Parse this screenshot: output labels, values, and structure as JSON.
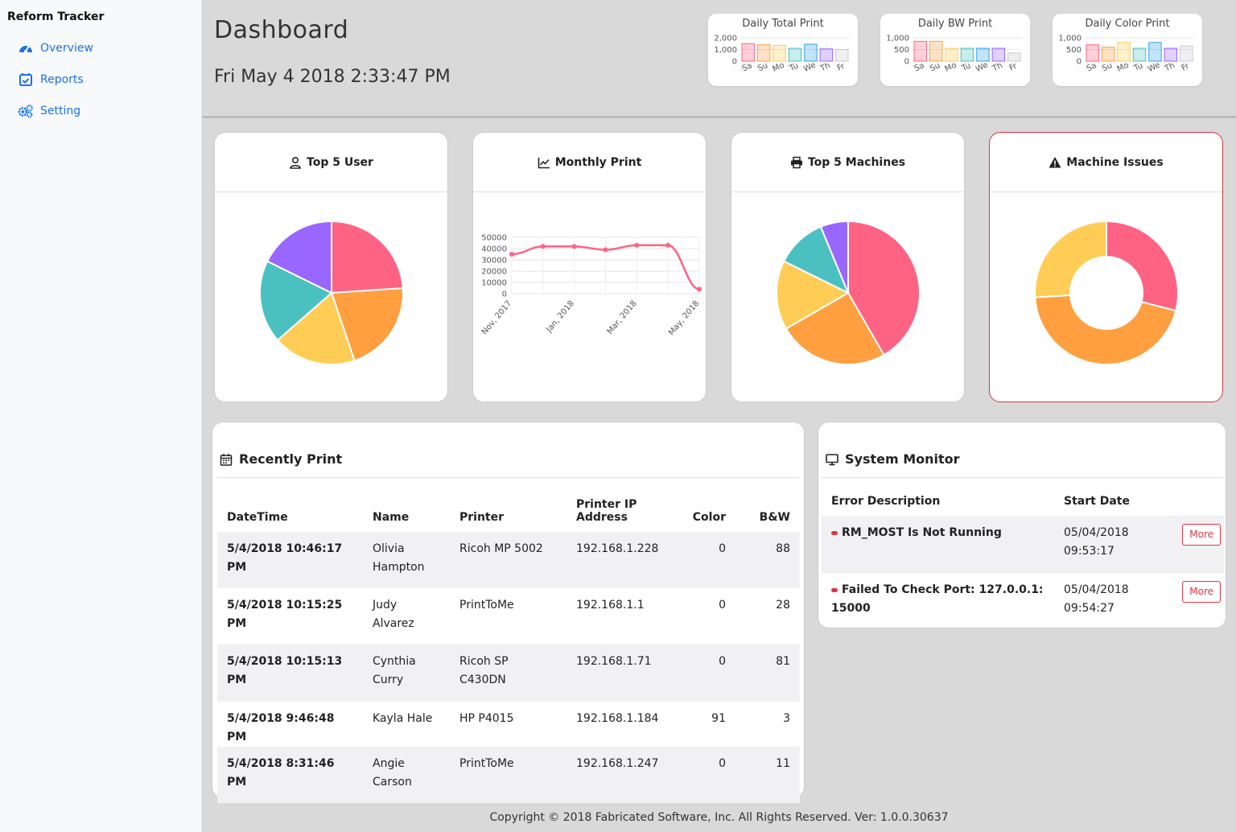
{
  "sidebar": {
    "brand": "Reform Tracker",
    "items": [
      {
        "label": "Overview",
        "icon": "dashboard-icon"
      },
      {
        "label": "Reports",
        "icon": "calendar-check-icon"
      },
      {
        "label": "Setting",
        "icon": "gears-icon"
      }
    ]
  },
  "header": {
    "title": "Dashboard",
    "datetime": "Fri May 4 2018 2:33:47 PM"
  },
  "mini_charts": [
    {
      "title": "Daily Total Print",
      "yticks": [
        "2,000",
        "1,000",
        "0"
      ],
      "ymax": 2000,
      "days": [
        "Sa",
        "Su",
        "Mo",
        "Tu",
        "We",
        "Th",
        "Fr"
      ],
      "values": [
        1500,
        1400,
        1350,
        1100,
        1450,
        1050,
        1000
      ]
    },
    {
      "title": "Daily BW Print",
      "yticks": [
        "1,000",
        "500",
        "0"
      ],
      "ymax": 1000,
      "days": [
        "Sa",
        "Su",
        "Mo",
        "Tu",
        "We",
        "Th",
        "Fr"
      ],
      "values": [
        850,
        850,
        550,
        550,
        550,
        550,
        350
      ]
    },
    {
      "title": "Daily Color Print",
      "yticks": [
        "1,000",
        "500",
        "0"
      ],
      "ymax": 1000,
      "days": [
        "Sa",
        "Su",
        "Mo",
        "Tu",
        "We",
        "Th",
        "Fr"
      ],
      "values": [
        700,
        600,
        800,
        550,
        800,
        550,
        650
      ]
    }
  ],
  "cards": [
    {
      "title": "Top 5 User",
      "icon": "user-icon"
    },
    {
      "title": "Monthly Print",
      "icon": "line-chart-icon"
    },
    {
      "title": "Top 5 Machines",
      "icon": "printer-icon"
    },
    {
      "title": "Machine Issues",
      "icon": "warning-icon"
    }
  ],
  "chart_data": [
    {
      "type": "pie",
      "title": "Top 5 User",
      "values": [
        23,
        20,
        18,
        18,
        17
      ],
      "colors": [
        "#ff6384",
        "#ff9f40",
        "#ffcd56",
        "#4bc0c0",
        "#9966ff"
      ]
    },
    {
      "type": "line",
      "title": "Monthly Print",
      "x": [
        "Nov, 2017",
        "Dec, 2017",
        "Jan, 2018",
        "Feb, 2018",
        "Mar, 2018",
        "Apr, 2018",
        "May, 2018"
      ],
      "xtick_labels": [
        "Nov, 2017",
        "Jan, 2018",
        "Mar, 2018",
        "May, 2018"
      ],
      "y": [
        35000,
        42000,
        42000,
        39000,
        43000,
        43000,
        4000
      ],
      "ylim": [
        0,
        50000
      ],
      "yticks": [
        "50000",
        "40000",
        "30000",
        "20000",
        "10000",
        "0"
      ],
      "color": "#ff6384",
      "grid": true
    },
    {
      "type": "pie",
      "title": "Top 5 Machines",
      "values": [
        40,
        24,
        15,
        11,
        6
      ],
      "colors": [
        "#ff6384",
        "#ff9f40",
        "#ffcd56",
        "#4bc0c0",
        "#9966ff"
      ]
    },
    {
      "type": "pie",
      "title": "Machine Issues",
      "donut": true,
      "values": [
        29,
        45,
        26
      ],
      "colors": [
        "#ff6384",
        "#ff9f40",
        "#ffcd56"
      ]
    }
  ],
  "recent": {
    "title": "Recently Print",
    "headers": [
      "DateTime",
      "Name",
      "Printer",
      "Printer IP Address",
      "Color",
      "B&W"
    ],
    "rows": [
      {
        "datetime": "5/4/2018 10:46:17 PM",
        "name": "Olivia Hampton",
        "printer": "Ricoh MP 5002",
        "ip": "192.168.1.228",
        "color": "0",
        "bw": "88"
      },
      {
        "datetime": "5/4/2018 10:15:25 PM",
        "name": "Judy Alvarez",
        "printer": "PrintToMe",
        "ip": "192.168.1.1",
        "color": "0",
        "bw": "28"
      },
      {
        "datetime": "5/4/2018 10:15:13 PM",
        "name": "Cynthia Curry",
        "printer": "Ricoh SP C430DN",
        "ip": "192.168.1.71",
        "color": "0",
        "bw": "81"
      },
      {
        "datetime": "5/4/2018 9:46:48 PM",
        "name": "Kayla Hale",
        "printer": "HP P4015",
        "ip": "192.168.1.184",
        "color": "91",
        "bw": "3"
      },
      {
        "datetime": "5/4/2018 8:31:46 PM",
        "name": "Angie Carson",
        "printer": "PrintToMe",
        "ip": "192.168.1.247",
        "color": "0",
        "bw": "11"
      }
    ]
  },
  "monitor": {
    "title": "System Monitor",
    "headers": [
      "Error Description",
      "Start Date"
    ],
    "rows": [
      {
        "error": "RM_MOST Is Not Running",
        "date": "05/04/2018",
        "time": "09:53:17",
        "action": "More"
      },
      {
        "error": "Failed To Check Port: 127.0.0.1: 15000",
        "date": "05/04/2018",
        "time": "09:54:27",
        "action": "More"
      }
    ]
  },
  "footer": "Copyright © 2018 Fabricated Software, Inc. All Rights Reserved. Ver: 1.0.0.30637"
}
